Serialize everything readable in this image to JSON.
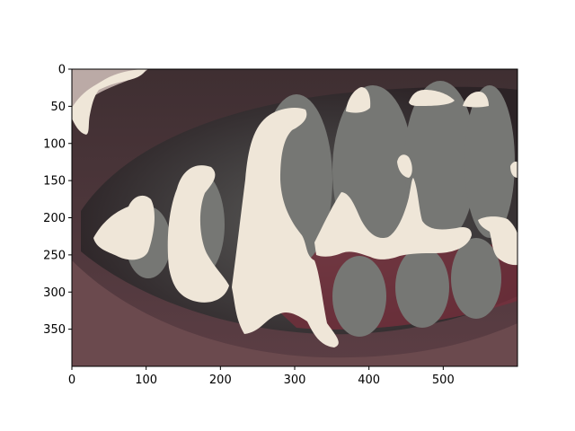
{
  "figure": {
    "subject": "close-up-of-mouth-with-teeth-mask-overlay",
    "colors": {
      "lip_dark": "#3a2b2e",
      "lip_mid": "#6b4a4e",
      "gum_red": "#7a2f3c",
      "teeth_gray": "#767774",
      "teeth_mask": "#efe6d8",
      "skin": "#c9b8b2",
      "page_bg": "#ffffff"
    }
  },
  "axes": {
    "xlim": [
      0,
      600
    ],
    "ylim": [
      400,
      0
    ],
    "x_ticks": [
      {
        "value": 0,
        "label": "0"
      },
      {
        "value": 100,
        "label": "100"
      },
      {
        "value": 200,
        "label": "200"
      },
      {
        "value": 300,
        "label": "300"
      },
      {
        "value": 400,
        "label": "400"
      },
      {
        "value": 500,
        "label": "500"
      }
    ],
    "y_ticks": [
      {
        "value": 0,
        "label": "0"
      },
      {
        "value": 50,
        "label": "50"
      },
      {
        "value": 100,
        "label": "100"
      },
      {
        "value": 150,
        "label": "150"
      },
      {
        "value": 200,
        "label": "200"
      },
      {
        "value": 250,
        "label": "250"
      },
      {
        "value": 300,
        "label": "300"
      },
      {
        "value": 350,
        "label": "350"
      }
    ]
  }
}
